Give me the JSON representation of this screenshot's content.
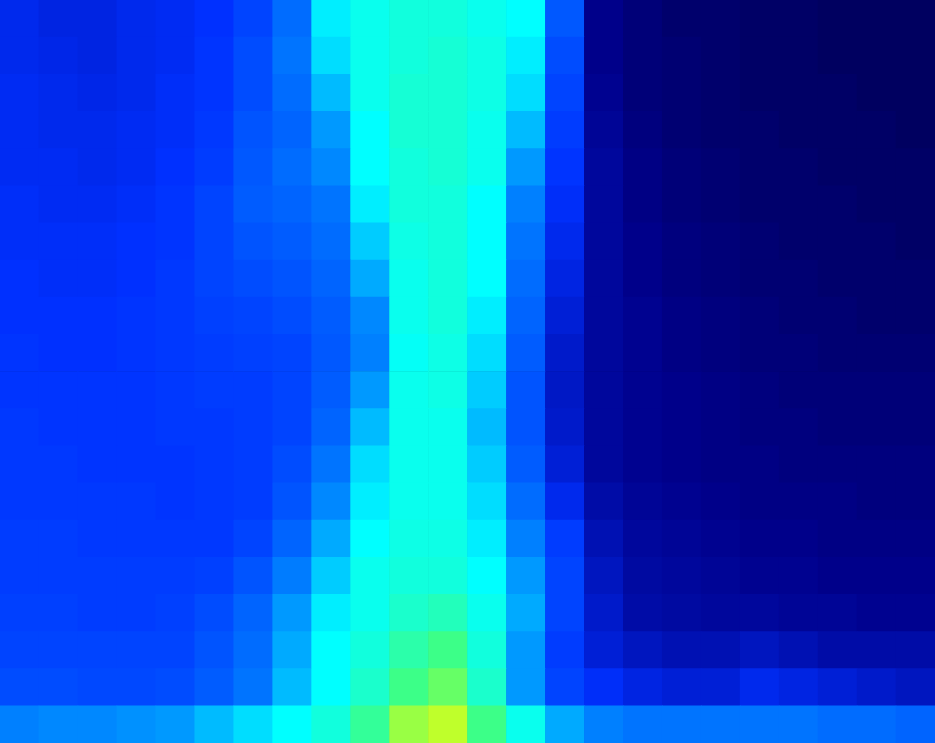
{
  "chart_data": {
    "type": "heatmap",
    "grid": false,
    "tick_labels": false,
    "zlim": [
      0,
      100
    ],
    "cells": [
      [
        32,
        30,
        30,
        32,
        33,
        35,
        40,
        50,
        68,
        72,
        74,
        74,
        72,
        70,
        45,
        15,
        12,
        10,
        10,
        9,
        9,
        8,
        8,
        8
      ],
      [
        32,
        31,
        30,
        32,
        33,
        36,
        42,
        52,
        66,
        72,
        74,
        75,
        73,
        68,
        42,
        15,
        12,
        11,
        10,
        9,
        9,
        8,
        8,
        8
      ],
      [
        33,
        32,
        31,
        32,
        34,
        36,
        42,
        50,
        62,
        72,
        75,
        75,
        73,
        66,
        40,
        16,
        12,
        11,
        10,
        9,
        9,
        9,
        8,
        8
      ],
      [
        33,
        32,
        32,
        33,
        34,
        37,
        44,
        48,
        58,
        70,
        75,
        75,
        72,
        62,
        38,
        17,
        13,
        11,
        10,
        10,
        9,
        9,
        9,
        8
      ],
      [
        33,
        33,
        32,
        33,
        35,
        38,
        45,
        50,
        56,
        70,
        74,
        75,
        72,
        58,
        36,
        18,
        14,
        12,
        11,
        10,
        10,
        9,
        9,
        9
      ],
      [
        34,
        33,
        33,
        34,
        36,
        40,
        46,
        48,
        52,
        68,
        74,
        74,
        70,
        55,
        34,
        18,
        14,
        12,
        11,
        10,
        10,
        10,
        9,
        9
      ],
      [
        34,
        34,
        34,
        35,
        36,
        40,
        44,
        46,
        50,
        64,
        73,
        74,
        70,
        52,
        32,
        18,
        15,
        13,
        12,
        11,
        10,
        10,
        10,
        9
      ],
      [
        35,
        34,
        34,
        35,
        37,
        40,
        42,
        44,
        48,
        60,
        72,
        74,
        70,
        50,
        30,
        18,
        15,
        13,
        12,
        11,
        11,
        10,
        10,
        10
      ],
      [
        35,
        35,
        35,
        36,
        37,
        39,
        40,
        42,
        46,
        56,
        72,
        74,
        68,
        48,
        28,
        18,
        16,
        14,
        13,
        12,
        11,
        11,
        10,
        10
      ],
      [
        36,
        35,
        35,
        36,
        37,
        38,
        39,
        40,
        45,
        55,
        71,
        73,
        66,
        46,
        26,
        18,
        16,
        14,
        13,
        12,
        12,
        11,
        11,
        11
      ],
      [
        36,
        36,
        36,
        36,
        37,
        38,
        38,
        40,
        46,
        58,
        72,
        73,
        64,
        44,
        25,
        18,
        16,
        15,
        14,
        13,
        12,
        12,
        12,
        12
      ],
      [
        37,
        36,
        36,
        36,
        37,
        37,
        38,
        40,
        48,
        62,
        72,
        72,
        62,
        44,
        26,
        18,
        16,
        15,
        14,
        13,
        13,
        12,
        12,
        12
      ],
      [
        37,
        37,
        36,
        36,
        36,
        37,
        38,
        42,
        52,
        66,
        72,
        72,
        64,
        46,
        28,
        18,
        16,
        15,
        14,
        14,
        13,
        13,
        13,
        13
      ],
      [
        37,
        37,
        37,
        37,
        36,
        37,
        38,
        44,
        56,
        68,
        72,
        72,
        66,
        50,
        32,
        20,
        17,
        16,
        15,
        14,
        14,
        14,
        13,
        13
      ],
      [
        38,
        38,
        37,
        37,
        37,
        37,
        40,
        48,
        60,
        70,
        73,
        73,
        68,
        55,
        38,
        22,
        18,
        17,
        16,
        15,
        15,
        14,
        14,
        14
      ],
      [
        38,
        38,
        38,
        38,
        38,
        39,
        44,
        54,
        64,
        72,
        74,
        74,
        70,
        58,
        40,
        24,
        19,
        18,
        17,
        16,
        16,
        15,
        15,
        15
      ],
      [
        39,
        39,
        38,
        38,
        39,
        42,
        48,
        58,
        68,
        72,
        76,
        78,
        72,
        60,
        40,
        26,
        20,
        19,
        18,
        18,
        17,
        17,
        16,
        16
      ],
      [
        40,
        40,
        40,
        40,
        40,
        44,
        50,
        60,
        70,
        74,
        80,
        84,
        74,
        58,
        38,
        28,
        24,
        22,
        22,
        24,
        22,
        20,
        20,
        20
      ],
      [
        42,
        42,
        41,
        41,
        42,
        46,
        52,
        62,
        70,
        76,
        84,
        88,
        76,
        58,
        40,
        34,
        30,
        28,
        28,
        32,
        30,
        28,
        26,
        24
      ],
      [
        55,
        56,
        56,
        57,
        58,
        62,
        66,
        70,
        74,
        82,
        92,
        95,
        84,
        72,
        60,
        55,
        52,
        52,
        52,
        52,
        52,
        50,
        50,
        48
      ]
    ]
  }
}
